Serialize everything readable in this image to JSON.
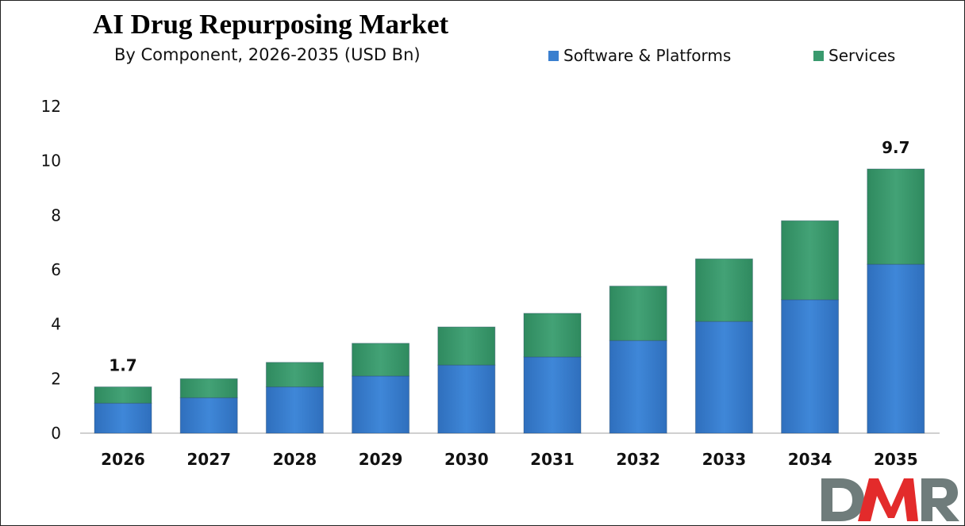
{
  "chart_data": {
    "type": "bar",
    "stacked": true,
    "title": "AI Drug Repurposing Market",
    "subtitle": "By Component, 2026-2035 (USD Bn)",
    "xlabel": "",
    "ylabel": "",
    "ylim": [
      0,
      12
    ],
    "yticks": [
      0,
      2,
      4,
      6,
      8,
      10,
      12
    ],
    "grid": false,
    "legend_position": "top-right",
    "categories": [
      "2026",
      "2027",
      "2028",
      "2029",
      "2030",
      "2031",
      "2032",
      "2033",
      "2034",
      "2035"
    ],
    "series": [
      {
        "name": "Software & Platforms",
        "color": "#3a7fcf",
        "values": [
          1.1,
          1.3,
          1.7,
          2.1,
          2.5,
          2.8,
          3.4,
          4.1,
          4.9,
          6.2
        ]
      },
      {
        "name": "Services",
        "color": "#3a9a6e",
        "values": [
          0.6,
          0.7,
          0.9,
          1.2,
          1.4,
          1.6,
          2.0,
          2.3,
          2.9,
          3.5
        ]
      }
    ],
    "annotations": [
      {
        "category": "2026",
        "label": "1.7"
      },
      {
        "category": "2035",
        "label": "9.7"
      }
    ]
  },
  "logo": {
    "text": "DMR",
    "colors": [
      "#6f7c7b",
      "#e32b2b"
    ]
  }
}
